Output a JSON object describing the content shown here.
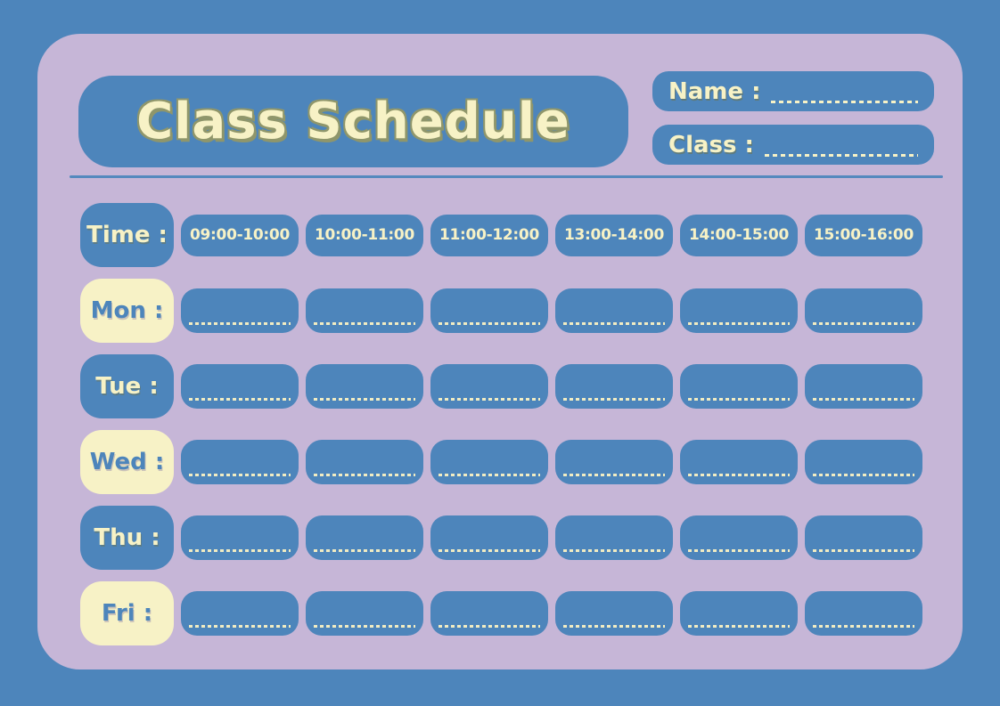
{
  "header": {
    "title": "Class Schedule",
    "name_label": "Name :",
    "class_label": "Class :"
  },
  "table": {
    "time_label": "Time :",
    "time_slots": [
      "09:00-10:00",
      "10:00-11:00",
      "11:00-12:00",
      "13:00-14:00",
      "14:00-15:00",
      "15:00-16:00"
    ],
    "days": [
      {
        "label": "Mon :",
        "variant": "cream"
      },
      {
        "label": "Tue :",
        "variant": "blue"
      },
      {
        "label": "Wed :",
        "variant": "cream"
      },
      {
        "label": "Thu :",
        "variant": "blue"
      },
      {
        "label": "Fri :",
        "variant": "cream"
      }
    ]
  },
  "colors": {
    "background_blue": "#4D85BB",
    "card_lavender": "#C6B6D7",
    "box_blue": "#4D85BB",
    "cream": "#F7F2C6",
    "title_outline_olive": "#8F966B"
  }
}
